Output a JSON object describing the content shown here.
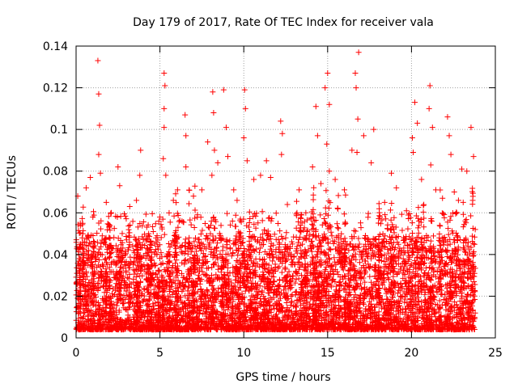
{
  "chart_data": {
    "type": "scatter",
    "title": "Day 179 of 2017, Rate Of TEC Index for receiver vala",
    "xlabel": "GPS time / hours",
    "ylabel": "ROTI / TECUs",
    "xlim": [
      0,
      25
    ],
    "ylim": [
      0,
      0.14
    ],
    "xticks": [
      0,
      5,
      10,
      15,
      20,
      25
    ],
    "xtick_labels": [
      "0",
      "5",
      "10",
      "15",
      "20",
      "25"
    ],
    "yticks": [
      0,
      0.02,
      0.04,
      0.06,
      0.08,
      0.1,
      0.12,
      0.14
    ],
    "ytick_labels": [
      "0",
      "0.02",
      "0.04",
      "0.06",
      "0.08",
      "0.1",
      "0.12",
      "0.14"
    ],
    "grid": true,
    "marker": "plus",
    "color": "#ff0000",
    "series": [
      {
        "name": "ROTI",
        "points": [
          [
            0.05,
            0.031
          ],
          [
            0.1,
            0.068
          ],
          [
            0.25,
            0.055
          ],
          [
            0.4,
            0.05
          ],
          [
            0.6,
            0.072
          ],
          [
            0.85,
            0.077
          ],
          [
            1.0,
            0.058
          ],
          [
            1.3,
            0.133
          ],
          [
            1.35,
            0.117
          ],
          [
            1.4,
            0.102
          ],
          [
            1.35,
            0.088
          ],
          [
            1.45,
            0.079
          ],
          [
            1.8,
            0.065
          ],
          [
            2.1,
            0.06
          ],
          [
            2.5,
            0.082
          ],
          [
            2.6,
            0.073
          ],
          [
            3.2,
            0.063
          ],
          [
            3.6,
            0.066
          ],
          [
            3.85,
            0.09
          ],
          [
            3.8,
            0.078
          ],
          [
            4.3,
            0.049
          ],
          [
            4.6,
            0.051
          ],
          [
            5.0,
            0.058
          ],
          [
            5.25,
            0.127
          ],
          [
            5.3,
            0.121
          ],
          [
            5.25,
            0.11
          ],
          [
            5.25,
            0.101
          ],
          [
            5.2,
            0.086
          ],
          [
            5.35,
            0.078
          ],
          [
            5.8,
            0.066
          ],
          [
            6.05,
            0.071
          ],
          [
            6.5,
            0.107
          ],
          [
            6.55,
            0.097
          ],
          [
            6.55,
            0.082
          ],
          [
            7.0,
            0.068
          ],
          [
            7.5,
            0.071
          ],
          [
            7.85,
            0.094
          ],
          [
            8.15,
            0.118
          ],
          [
            8.2,
            0.108
          ],
          [
            8.25,
            0.09
          ],
          [
            8.1,
            0.078
          ],
          [
            8.45,
            0.084
          ],
          [
            8.8,
            0.119
          ],
          [
            8.95,
            0.101
          ],
          [
            9.05,
            0.087
          ],
          [
            9.4,
            0.071
          ],
          [
            9.6,
            0.066
          ],
          [
            9.8,
            0.057
          ],
          [
            10.05,
            0.119
          ],
          [
            10.1,
            0.11
          ],
          [
            10.0,
            0.096
          ],
          [
            10.2,
            0.085
          ],
          [
            10.6,
            0.076
          ],
          [
            11.0,
            0.078
          ],
          [
            11.35,
            0.085
          ],
          [
            11.6,
            0.077
          ],
          [
            12.2,
            0.104
          ],
          [
            12.3,
            0.098
          ],
          [
            12.25,
            0.088
          ],
          [
            12.6,
            0.064
          ],
          [
            13.3,
            0.071
          ],
          [
            13.7,
            0.06
          ],
          [
            14.1,
            0.082
          ],
          [
            14.3,
            0.111
          ],
          [
            14.4,
            0.097
          ],
          [
            14.6,
            0.074
          ],
          [
            14.85,
            0.12
          ],
          [
            15.0,
            0.127
          ],
          [
            15.1,
            0.112
          ],
          [
            14.95,
            0.093
          ],
          [
            15.1,
            0.08
          ],
          [
            15.45,
            0.076
          ],
          [
            16.0,
            0.071
          ],
          [
            16.45,
            0.09
          ],
          [
            16.65,
            0.127
          ],
          [
            16.85,
            0.137
          ],
          [
            16.7,
            0.12
          ],
          [
            16.8,
            0.105
          ],
          [
            16.75,
            0.089
          ],
          [
            17.15,
            0.097
          ],
          [
            17.6,
            0.084
          ],
          [
            17.75,
            0.1
          ],
          [
            18.4,
            0.065
          ],
          [
            18.8,
            0.079
          ],
          [
            19.1,
            0.072
          ],
          [
            19.7,
            0.061
          ],
          [
            20.05,
            0.096
          ],
          [
            20.2,
            0.113
          ],
          [
            20.35,
            0.103
          ],
          [
            20.1,
            0.089
          ],
          [
            20.6,
            0.076
          ],
          [
            21.05,
            0.11
          ],
          [
            21.1,
            0.121
          ],
          [
            21.25,
            0.101
          ],
          [
            21.15,
            0.083
          ],
          [
            21.45,
            0.071
          ],
          [
            21.85,
            0.067
          ],
          [
            22.15,
            0.106
          ],
          [
            22.25,
            0.097
          ],
          [
            22.35,
            0.088
          ],
          [
            22.55,
            0.07
          ],
          [
            22.8,
            0.066
          ],
          [
            23.0,
            0.081
          ],
          [
            23.3,
            0.08
          ],
          [
            23.55,
            0.101
          ],
          [
            23.7,
            0.087
          ],
          [
            23.65,
            0.066
          ],
          [
            23.8,
            0.052
          ]
        ]
      }
    ]
  }
}
